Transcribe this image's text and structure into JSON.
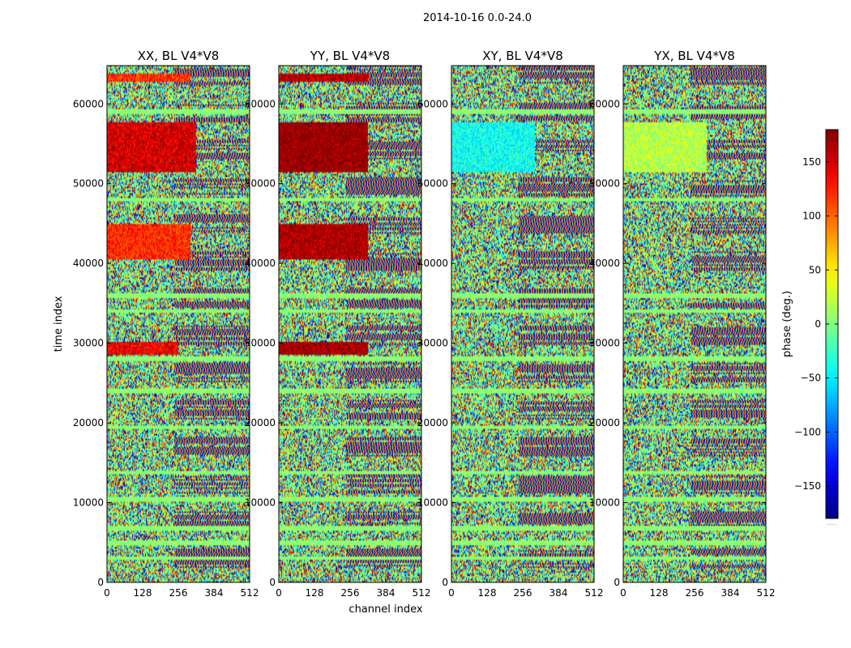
{
  "chart_data": {
    "type": "heatmap",
    "suptitle": "2014-10-16 0.0-24.0",
    "xlabel": "channel index",
    "ylabel": "time index",
    "xlim": [
      0,
      512
    ],
    "ylim": [
      0,
      64800
    ],
    "xticks": [
      0,
      128,
      256,
      384,
      512
    ],
    "yticks": [
      0,
      10000,
      20000,
      30000,
      40000,
      50000,
      60000
    ],
    "panels": [
      {
        "title": "XX, BL V4*V8",
        "polarization": "XX"
      },
      {
        "title": "YY, BL V4*V8",
        "polarization": "YY"
      },
      {
        "title": "XY, BL V4*V8",
        "polarization": "XY"
      },
      {
        "title": "YX, BL V4*V8",
        "polarization": "YX"
      }
    ],
    "colorbar": {
      "label": "phase (deg.)",
      "range": [
        -180,
        180
      ],
      "ticks": [
        -150,
        -100,
        -50,
        0,
        50,
        100,
        150
      ],
      "colormap": "jet",
      "extra_label": "....."
    },
    "flagged_rows": [
      3000,
      5000,
      6800,
      10400,
      13800,
      19400,
      24000,
      28000,
      34000,
      36000,
      48000,
      59000
    ],
    "coherent_blocks": [
      {
        "panel": "XX",
        "t_start": 51500,
        "t_end": 57800,
        "channels": [
          0,
          320
        ],
        "phase_mean": 150
      },
      {
        "panel": "XX",
        "t_start": 40500,
        "t_end": 45000,
        "channels": [
          0,
          300
        ],
        "phase_mean": 120
      },
      {
        "panel": "XX",
        "t_start": 28500,
        "t_end": 30200,
        "channels": [
          0,
          256
        ],
        "phase_mean": 140
      },
      {
        "panel": "XX",
        "t_start": 62800,
        "t_end": 63800,
        "channels": [
          0,
          300
        ],
        "phase_mean": 120
      },
      {
        "panel": "YY",
        "t_start": 51500,
        "t_end": 57800,
        "channels": [
          0,
          320
        ],
        "phase_mean": 175
      },
      {
        "panel": "YY",
        "t_start": 40500,
        "t_end": 45000,
        "channels": [
          0,
          320
        ],
        "phase_mean": 165
      },
      {
        "panel": "YY",
        "t_start": 28500,
        "t_end": 30200,
        "channels": [
          0,
          320
        ],
        "phase_mean": 170
      },
      {
        "panel": "YY",
        "t_start": 62800,
        "t_end": 63800,
        "channels": [
          0,
          320
        ],
        "phase_mean": 160
      },
      {
        "panel": "XY",
        "t_start": 51500,
        "t_end": 57800,
        "channels": [
          0,
          300
        ],
        "phase_mean": -40
      },
      {
        "panel": "YX",
        "t_start": 51500,
        "t_end": 57800,
        "channels": [
          0,
          300
        ],
        "phase_mean": 20
      }
    ]
  }
}
